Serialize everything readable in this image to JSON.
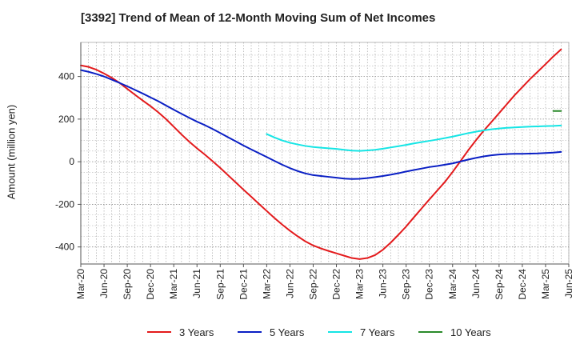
{
  "chart_data": {
    "type": "line",
    "title": "[3392]  Trend of Mean of 12-Month Moving Sum of Net Incomes",
    "ylabel": "Amount (million yen)",
    "xlabel": "",
    "ylim": [
      -480,
      560
    ],
    "yticks": [
      400,
      200,
      0,
      -200,
      -400
    ],
    "ytick_labels": [
      "400",
      "200",
      "0",
      "-200",
      "-400"
    ],
    "xticks": [
      "Mar-20",
      "Jun-20",
      "Sep-20",
      "Dec-20",
      "Mar-21",
      "Jun-21",
      "Sep-21",
      "Dec-21",
      "Mar-22",
      "Jun-22",
      "Sep-22",
      "Dec-22",
      "Mar-23",
      "Jun-23",
      "Sep-23",
      "Dec-23",
      "Mar-24",
      "Jun-24",
      "Sep-24",
      "Dec-24",
      "Mar-25",
      "Jun-25"
    ],
    "grid": true,
    "legend_position": "bottom",
    "series": [
      {
        "name": "3 Years",
        "color": "#e31a1c",
        "start_index": 0,
        "values": [
          452,
          445,
          432,
          414,
          394,
          370,
          342,
          314,
          287,
          261,
          232,
          200,
          164,
          128,
          94,
          63,
          34,
          3,
          -29,
          -63,
          -97,
          -131,
          -164,
          -198,
          -231,
          -264,
          -295,
          -324,
          -350,
          -374,
          -393,
          -407,
          -419,
          -430,
          -441,
          -452,
          -457,
          -452,
          -438,
          -413,
          -380,
          -343,
          -304,
          -261,
          -219,
          -177,
          -136,
          -95,
          -48,
          2,
          53,
          100,
          145,
          186,
          228,
          270,
          312,
          350,
          388,
          423,
          458,
          494,
          527
        ]
      },
      {
        "name": "5 Years",
        "color": "#0a1fc4",
        "start_index": 0,
        "values": [
          430,
          422,
          412,
          400,
          385,
          370,
          354,
          337,
          320,
          302,
          284,
          264,
          244,
          225,
          206,
          188,
          172,
          154,
          135,
          115,
          96,
          76,
          58,
          40,
          22,
          4,
          -14,
          -30,
          -44,
          -55,
          -63,
          -67,
          -71,
          -75,
          -79,
          -81,
          -80,
          -77,
          -72,
          -67,
          -61,
          -54,
          -46,
          -39,
          -32,
          -25,
          -20,
          -14,
          -8,
          1,
          10,
          18,
          25,
          30,
          34,
          36,
          37,
          37,
          38,
          39,
          41,
          43,
          46
        ]
      },
      {
        "name": "7 Years",
        "color": "#16e5e5",
        "start_index": 24,
        "values": [
          130,
          114,
          100,
          89,
          81,
          74,
          69,
          66,
          63,
          60,
          56,
          52,
          51,
          53,
          56,
          61,
          67,
          73,
          79,
          86,
          92,
          98,
          104,
          111,
          118,
          126,
          134,
          141,
          147,
          152,
          156,
          159,
          161,
          163,
          165,
          166,
          167,
          168,
          170
        ]
      },
      {
        "name": "10 Years",
        "color": "#2a8a2a",
        "start_index": 61,
        "values": [
          238,
          238
        ]
      }
    ]
  }
}
